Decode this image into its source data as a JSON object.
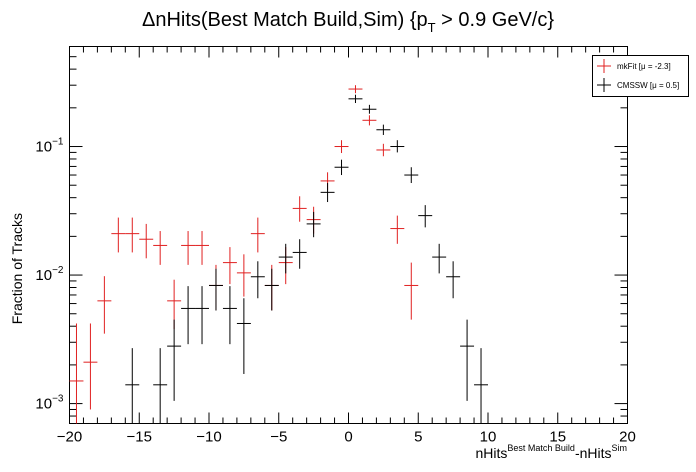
{
  "chart_data": {
    "type": "scatter",
    "title_main": "ΔnHits(Best Match Build,Sim) {p",
    "title_sub": "T",
    "title_tail": " > 0.9 GeV/c}",
    "xlabel_main": "nHits",
    "xlabel_sup1": "Best Match Build",
    "xlabel_mid": "-nHits",
    "xlabel_sup2": "Sim",
    "ylabel": "Fraction of Tracks",
    "xlim": [
      -20,
      20
    ],
    "ylim": [
      0.0007,
      0.6
    ],
    "yscale": "log",
    "grid": false,
    "legend_placement": "top-right",
    "x_ticks": [
      "−20",
      "−15",
      "−10",
      "−5",
      "0",
      "5",
      "10",
      "15",
      "20"
    ],
    "y_ticks": [
      {
        "base": "10",
        "exp": "−3",
        "value": 0.001
      },
      {
        "base": "10",
        "exp": "−2",
        "value": 0.01
      },
      {
        "base": "10",
        "exp": "−1",
        "value": 0.1
      }
    ],
    "series": [
      {
        "name": "mkFit",
        "legend_label": "mkFit  [μ = -2.3]",
        "color": "#e02020",
        "points": [
          {
            "x": -19.5,
            "y": 0.0015,
            "ylo": 0.0007,
            "yhi": 0.0042
          },
          {
            "x": -18.5,
            "y": 0.0021,
            "ylo": 0.0009,
            "yhi": 0.0042
          },
          {
            "x": -17.5,
            "y": 0.0063,
            "ylo": 0.0035,
            "yhi": 0.0098
          },
          {
            "x": -16.5,
            "y": 0.021,
            "ylo": 0.015,
            "yhi": 0.028
          },
          {
            "x": -15.5,
            "y": 0.021,
            "ylo": 0.015,
            "yhi": 0.028
          },
          {
            "x": -14.5,
            "y": 0.019,
            "ylo": 0.0135,
            "yhi": 0.025
          },
          {
            "x": -13.5,
            "y": 0.017,
            "ylo": 0.012,
            "yhi": 0.022
          },
          {
            "x": -12.5,
            "y": 0.0063,
            "ylo": 0.0038,
            "yhi": 0.0092
          },
          {
            "x": -11.5,
            "y": 0.017,
            "ylo": 0.012,
            "yhi": 0.022
          },
          {
            "x": -10.5,
            "y": 0.017,
            "ylo": 0.012,
            "yhi": 0.022
          },
          {
            "x": -9.5,
            "y": 0.0083,
            "ylo": 0.0053,
            "yhi": 0.012
          },
          {
            "x": -8.5,
            "y": 0.0125,
            "ylo": 0.0085,
            "yhi": 0.0165
          },
          {
            "x": -7.5,
            "y": 0.0104,
            "ylo": 0.0068,
            "yhi": 0.0145
          },
          {
            "x": -6.5,
            "y": 0.021,
            "ylo": 0.015,
            "yhi": 0.028
          },
          {
            "x": -5.5,
            "y": 0.0083,
            "ylo": 0.0053,
            "yhi": 0.012
          },
          {
            "x": -4.5,
            "y": 0.0125,
            "ylo": 0.0085,
            "yhi": 0.0165
          },
          {
            "x": -3.5,
            "y": 0.033,
            "ylo": 0.026,
            "yhi": 0.041
          },
          {
            "x": -2.5,
            "y": 0.027,
            "ylo": 0.021,
            "yhi": 0.034
          },
          {
            "x": -1.5,
            "y": 0.054,
            "ylo": 0.046,
            "yhi": 0.063
          },
          {
            "x": -0.5,
            "y": 0.1,
            "ylo": 0.089,
            "yhi": 0.112
          },
          {
            "x": 0.5,
            "y": 0.28,
            "ylo": 0.26,
            "yhi": 0.3
          },
          {
            "x": 1.5,
            "y": 0.16,
            "ylo": 0.146,
            "yhi": 0.175
          },
          {
            "x": 2.5,
            "y": 0.094,
            "ylo": 0.084,
            "yhi": 0.105
          },
          {
            "x": 3.5,
            "y": 0.023,
            "ylo": 0.0175,
            "yhi": 0.029
          },
          {
            "x": 4.5,
            "y": 0.0083,
            "ylo": 0.0045,
            "yhi": 0.0125
          }
        ]
      },
      {
        "name": "CMSSW",
        "legend_label": "CMSSW  [μ =  0.5]",
        "color": "#000000",
        "points": [
          {
            "x": -15.5,
            "y": 0.0014,
            "ylo": 0.0007,
            "yhi": 0.0027
          },
          {
            "x": -13.5,
            "y": 0.0014,
            "ylo": 0.0007,
            "yhi": 0.0027
          },
          {
            "x": -12.5,
            "y": 0.0028,
            "ylo": 0.00105,
            "yhi": 0.0045
          },
          {
            "x": -11.5,
            "y": 0.0055,
            "ylo": 0.0029,
            "yhi": 0.0082
          },
          {
            "x": -10.5,
            "y": 0.0055,
            "ylo": 0.0029,
            "yhi": 0.0082
          },
          {
            "x": -9.5,
            "y": 0.0083,
            "ylo": 0.0053,
            "yhi": 0.0112
          },
          {
            "x": -8.5,
            "y": 0.0055,
            "ylo": 0.0029,
            "yhi": 0.0082
          },
          {
            "x": -7.5,
            "y": 0.0042,
            "ylo": 0.0017,
            "yhi": 0.0066
          },
          {
            "x": -6.5,
            "y": 0.0097,
            "ylo": 0.0066,
            "yhi": 0.0128
          },
          {
            "x": -5.5,
            "y": 0.0083,
            "ylo": 0.0053,
            "yhi": 0.0112
          },
          {
            "x": -4.5,
            "y": 0.0138,
            "ylo": 0.0103,
            "yhi": 0.0175
          },
          {
            "x": -3.5,
            "y": 0.015,
            "ylo": 0.0112,
            "yhi": 0.019
          },
          {
            "x": -2.5,
            "y": 0.025,
            "ylo": 0.0197,
            "yhi": 0.031
          },
          {
            "x": -1.5,
            "y": 0.044,
            "ylo": 0.037,
            "yhi": 0.052
          },
          {
            "x": -0.5,
            "y": 0.069,
            "ylo": 0.06,
            "yhi": 0.079
          },
          {
            "x": 0.5,
            "y": 0.235,
            "ylo": 0.218,
            "yhi": 0.253
          },
          {
            "x": 1.5,
            "y": 0.195,
            "ylo": 0.18,
            "yhi": 0.211
          },
          {
            "x": 2.5,
            "y": 0.135,
            "ylo": 0.123,
            "yhi": 0.148
          },
          {
            "x": 3.5,
            "y": 0.1,
            "ylo": 0.09,
            "yhi": 0.112
          },
          {
            "x": 4.5,
            "y": 0.06,
            "ylo": 0.052,
            "yhi": 0.069
          },
          {
            "x": 5.5,
            "y": 0.029,
            "ylo": 0.0235,
            "yhi": 0.035
          },
          {
            "x": 6.5,
            "y": 0.0138,
            "ylo": 0.0103,
            "yhi": 0.0175
          },
          {
            "x": 7.5,
            "y": 0.0097,
            "ylo": 0.0066,
            "yhi": 0.0128
          },
          {
            "x": 8.5,
            "y": 0.0028,
            "ylo": 0.00105,
            "yhi": 0.0045
          },
          {
            "x": 9.5,
            "y": 0.0014,
            "ylo": 0.0007,
            "yhi": 0.0027
          }
        ]
      }
    ]
  }
}
